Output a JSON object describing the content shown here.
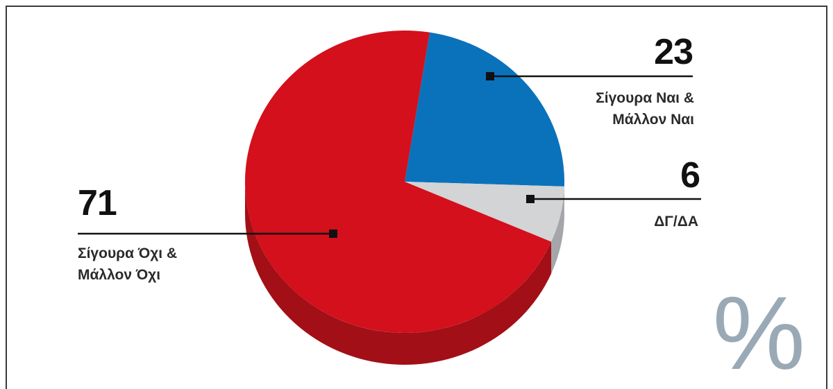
{
  "chart_data": {
    "type": "pie",
    "unit": "%",
    "slices": [
      {
        "value": 71,
        "label_lines": [
          "Σίγουρα Όχι &",
          "Μάλλον Όχι"
        ],
        "color": "#d3101c",
        "side_color": "#a30f16"
      },
      {
        "value": 23,
        "label_lines": [
          "Σίγουρα Ναι &",
          "Μάλλον Ναι"
        ],
        "color": "#0a72bb",
        "side_color": "#075a94"
      },
      {
        "value": 6,
        "label_lines": [
          "ΔΓ/ΔΑ"
        ],
        "color": "#d2d4d6",
        "side_color": "#a4a6a9"
      }
    ]
  }
}
